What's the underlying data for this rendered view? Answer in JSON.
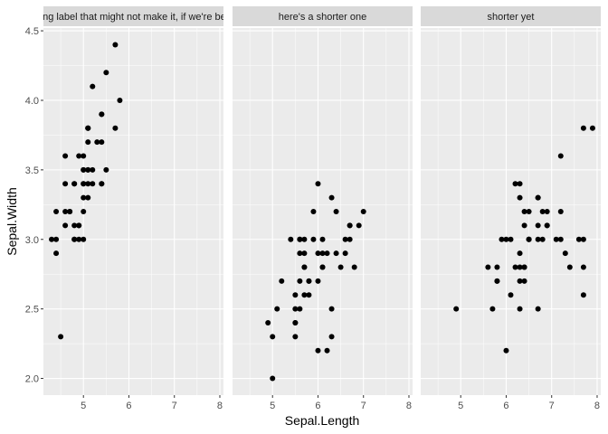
{
  "chart_data": {
    "type": "scatter",
    "xlabel": "Sepal.Length",
    "ylabel": "Sepal.Width",
    "xlim": [
      4.3,
      7.9
    ],
    "ylim": [
      2.0,
      4.4
    ],
    "x_ticks": [
      "5",
      "6",
      "7",
      "8"
    ],
    "y_ticks": [
      "2.0",
      "2.5",
      "3.0",
      "3.5",
      "4.0",
      "4.5"
    ],
    "grid": true,
    "colors": {
      "panel_background": "#ebebeb",
      "strip_background": "#d9d9d9",
      "grid": "#ffffff",
      "points": "#000000"
    },
    "panels": [
      {
        "strip_label": "This is a long label that might not make it, if we're being honest",
        "points": [
          [
            5.1,
            3.5
          ],
          [
            4.9,
            3.0
          ],
          [
            4.7,
            3.2
          ],
          [
            4.6,
            3.1
          ],
          [
            5.0,
            3.6
          ],
          [
            5.4,
            3.9
          ],
          [
            4.6,
            3.4
          ],
          [
            5.0,
            3.4
          ],
          [
            4.4,
            2.9
          ],
          [
            4.9,
            3.1
          ],
          [
            5.4,
            3.7
          ],
          [
            4.8,
            3.4
          ],
          [
            4.8,
            3.0
          ],
          [
            4.3,
            3.0
          ],
          [
            5.8,
            4.0
          ],
          [
            5.7,
            4.4
          ],
          [
            5.4,
            3.9
          ],
          [
            5.1,
            3.5
          ],
          [
            5.7,
            3.8
          ],
          [
            5.1,
            3.8
          ],
          [
            5.4,
            3.4
          ],
          [
            5.1,
            3.7
          ],
          [
            4.6,
            3.6
          ],
          [
            5.1,
            3.3
          ],
          [
            4.8,
            3.4
          ],
          [
            5.0,
            3.0
          ],
          [
            5.0,
            3.4
          ],
          [
            5.2,
            3.5
          ],
          [
            5.2,
            3.4
          ],
          [
            4.7,
            3.2
          ],
          [
            4.8,
            3.1
          ],
          [
            5.4,
            3.4
          ],
          [
            5.2,
            4.1
          ],
          [
            5.5,
            4.2
          ],
          [
            4.9,
            3.1
          ],
          [
            5.0,
            3.2
          ],
          [
            5.5,
            3.5
          ],
          [
            4.9,
            3.6
          ],
          [
            4.4,
            3.0
          ],
          [
            5.1,
            3.4
          ],
          [
            5.0,
            3.5
          ],
          [
            4.5,
            2.3
          ],
          [
            4.4,
            3.2
          ],
          [
            5.0,
            3.5
          ],
          [
            5.1,
            3.8
          ],
          [
            4.8,
            3.0
          ],
          [
            5.1,
            3.8
          ],
          [
            4.6,
            3.2
          ],
          [
            5.3,
            3.7
          ],
          [
            5.0,
            3.3
          ]
        ]
      },
      {
        "strip_label": "here's a shorter one",
        "points": [
          [
            7.0,
            3.2
          ],
          [
            6.4,
            3.2
          ],
          [
            6.9,
            3.1
          ],
          [
            5.5,
            2.3
          ],
          [
            6.5,
            2.8
          ],
          [
            5.7,
            2.8
          ],
          [
            6.3,
            3.3
          ],
          [
            4.9,
            2.4
          ],
          [
            6.6,
            2.9
          ],
          [
            5.2,
            2.7
          ],
          [
            5.0,
            2.0
          ],
          [
            5.9,
            3.0
          ],
          [
            6.0,
            2.2
          ],
          [
            6.1,
            2.9
          ],
          [
            5.6,
            2.9
          ],
          [
            6.7,
            3.1
          ],
          [
            5.6,
            3.0
          ],
          [
            5.8,
            2.7
          ],
          [
            6.2,
            2.2
          ],
          [
            5.6,
            2.5
          ],
          [
            5.9,
            3.2
          ],
          [
            6.1,
            2.8
          ],
          [
            6.3,
            2.5
          ],
          [
            6.1,
            2.8
          ],
          [
            6.4,
            2.9
          ],
          [
            6.6,
            3.0
          ],
          [
            6.8,
            2.8
          ],
          [
            6.7,
            3.0
          ],
          [
            6.0,
            2.9
          ],
          [
            5.7,
            2.6
          ],
          [
            5.5,
            2.4
          ],
          [
            5.5,
            2.4
          ],
          [
            5.8,
            2.7
          ],
          [
            6.0,
            2.7
          ],
          [
            5.4,
            3.0
          ],
          [
            6.0,
            3.4
          ],
          [
            6.7,
            3.1
          ],
          [
            6.3,
            2.3
          ],
          [
            5.6,
            3.0
          ],
          [
            5.5,
            2.5
          ],
          [
            5.5,
            2.6
          ],
          [
            6.1,
            3.0
          ],
          [
            5.8,
            2.6
          ],
          [
            5.0,
            2.3
          ],
          [
            5.6,
            2.7
          ],
          [
            5.7,
            3.0
          ],
          [
            5.7,
            2.9
          ],
          [
            6.2,
            2.9
          ],
          [
            5.1,
            2.5
          ],
          [
            5.7,
            2.8
          ]
        ]
      },
      {
        "strip_label": "shorter yet",
        "points": [
          [
            6.3,
            3.3
          ],
          [
            5.8,
            2.7
          ],
          [
            7.1,
            3.0
          ],
          [
            6.3,
            2.9
          ],
          [
            6.5,
            3.0
          ],
          [
            7.6,
            3.0
          ],
          [
            4.9,
            2.5
          ],
          [
            7.3,
            2.9
          ],
          [
            6.7,
            2.5
          ],
          [
            7.2,
            3.6
          ],
          [
            6.5,
            3.2
          ],
          [
            6.4,
            2.7
          ],
          [
            6.8,
            3.0
          ],
          [
            5.7,
            2.5
          ],
          [
            5.8,
            2.8
          ],
          [
            6.4,
            3.2
          ],
          [
            6.5,
            3.0
          ],
          [
            7.7,
            3.8
          ],
          [
            7.7,
            2.6
          ],
          [
            6.0,
            2.2
          ],
          [
            6.9,
            3.2
          ],
          [
            5.6,
            2.8
          ],
          [
            7.7,
            2.8
          ],
          [
            6.3,
            2.7
          ],
          [
            6.7,
            3.3
          ],
          [
            7.2,
            3.2
          ],
          [
            6.2,
            2.8
          ],
          [
            6.1,
            3.0
          ],
          [
            6.4,
            2.8
          ],
          [
            7.2,
            3.0
          ],
          [
            7.4,
            2.8
          ],
          [
            7.9,
            3.8
          ],
          [
            6.4,
            2.8
          ],
          [
            6.3,
            2.8
          ],
          [
            6.1,
            2.6
          ],
          [
            7.7,
            3.0
          ],
          [
            6.3,
            3.4
          ],
          [
            6.4,
            3.1
          ],
          [
            6.0,
            3.0
          ],
          [
            6.9,
            3.1
          ],
          [
            6.7,
            3.1
          ],
          [
            6.9,
            3.1
          ],
          [
            5.8,
            2.7
          ],
          [
            6.8,
            3.2
          ],
          [
            6.7,
            3.3
          ],
          [
            6.7,
            3.0
          ],
          [
            6.3,
            2.5
          ],
          [
            6.5,
            3.0
          ],
          [
            6.2,
            3.4
          ],
          [
            5.9,
            3.0
          ]
        ]
      }
    ]
  }
}
